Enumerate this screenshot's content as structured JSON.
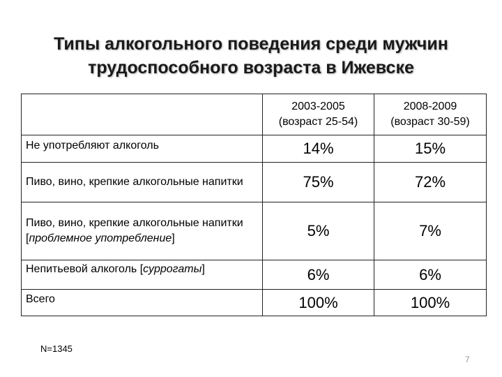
{
  "title": {
    "line1": "Типы алкогольного поведения среди мужчин",
    "line2": "трудоспособного возраста в Ижевске"
  },
  "table": {
    "columns": [
      {
        "period": "2003-2005",
        "age": "(возраст 25-54)"
      },
      {
        "period": "2008-2009",
        "age": "(возраст 30-59)"
      }
    ],
    "rows": [
      {
        "label": "Не употребляют алкоголь",
        "values": [
          "14%",
          "15%"
        ]
      },
      {
        "label": "Пиво, вино, крепкие алкогольные напитки",
        "values": [
          "75%",
          "72%"
        ]
      },
      {
        "label_main": "Пиво, вино, крепкие алкогольные напитки",
        "label_open": "[",
        "label_italic": "проблемное употребление",
        "label_close": "]",
        "values": [
          "5%",
          "7%"
        ]
      },
      {
        "label_main": "Непитьевой алкоголь",
        "label_open": "[",
        "label_italic": "суррогаты",
        "label_close": "]",
        "values": [
          "6%",
          "6%"
        ]
      },
      {
        "label": "Всего",
        "values": [
          "100%",
          "100%"
        ]
      }
    ]
  },
  "footnote": "N=1345",
  "page_number": "7"
}
